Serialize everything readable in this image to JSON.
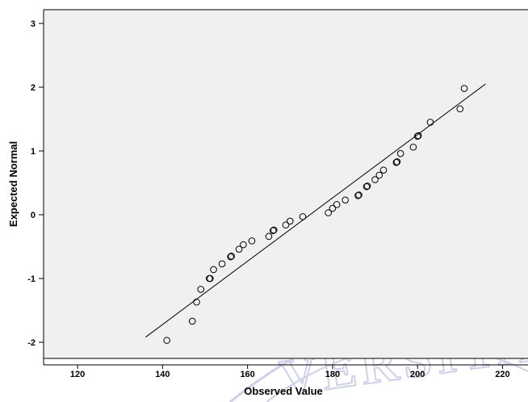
{
  "chart_data": {
    "type": "scatter",
    "title": "",
    "xlabel": "Observed Value",
    "ylabel": "Expected Normal",
    "xlim": [
      112,
      226
    ],
    "ylim": [
      -2.25,
      3.2
    ],
    "x_ticks": [
      120,
      140,
      160,
      180,
      200,
      220
    ],
    "y_ticks": [
      -2,
      -1,
      0,
      1,
      2,
      3
    ],
    "grid": false,
    "background": "#f0f0f0",
    "marker": "open-circle",
    "reference_line": {
      "x": [
        136,
        216
      ],
      "y": [
        -1.92,
        2.05
      ]
    },
    "points": [
      {
        "x": 141,
        "y": -1.97
      },
      {
        "x": 147,
        "y": -1.67
      },
      {
        "x": 148,
        "y": -1.37
      },
      {
        "x": 149,
        "y": -1.17
      },
      {
        "x": 151,
        "y": -1.0
      },
      {
        "x": 151.2,
        "y": -1.0
      },
      {
        "x": 152,
        "y": -0.86
      },
      {
        "x": 154,
        "y": -0.77
      },
      {
        "x": 156,
        "y": -0.66
      },
      {
        "x": 156.2,
        "y": -0.65
      },
      {
        "x": 158,
        "y": -0.54
      },
      {
        "x": 159,
        "y": -0.47
      },
      {
        "x": 161,
        "y": -0.41
      },
      {
        "x": 165,
        "y": -0.34
      },
      {
        "x": 166,
        "y": -0.25
      },
      {
        "x": 166.2,
        "y": -0.24
      },
      {
        "x": 169,
        "y": -0.16
      },
      {
        "x": 170,
        "y": -0.1
      },
      {
        "x": 173,
        "y": -0.03
      },
      {
        "x": 179,
        "y": 0.03
      },
      {
        "x": 180,
        "y": 0.1
      },
      {
        "x": 181,
        "y": 0.16
      },
      {
        "x": 183,
        "y": 0.23
      },
      {
        "x": 186,
        "y": 0.3
      },
      {
        "x": 186.2,
        "y": 0.31
      },
      {
        "x": 188,
        "y": 0.44
      },
      {
        "x": 188.2,
        "y": 0.45
      },
      {
        "x": 190,
        "y": 0.55
      },
      {
        "x": 191,
        "y": 0.62
      },
      {
        "x": 192,
        "y": 0.7
      },
      {
        "x": 195,
        "y": 0.82
      },
      {
        "x": 195.2,
        "y": 0.83
      },
      {
        "x": 196,
        "y": 0.96
      },
      {
        "x": 199,
        "y": 1.06
      },
      {
        "x": 200,
        "y": 1.23
      },
      {
        "x": 200.2,
        "y": 1.24
      },
      {
        "x": 203,
        "y": 1.45
      },
      {
        "x": 210,
        "y": 1.66
      },
      {
        "x": 211,
        "y": 1.98
      }
    ]
  },
  "watermark": {
    "text": "VERSITAS",
    "color": "#c9cbe6"
  }
}
